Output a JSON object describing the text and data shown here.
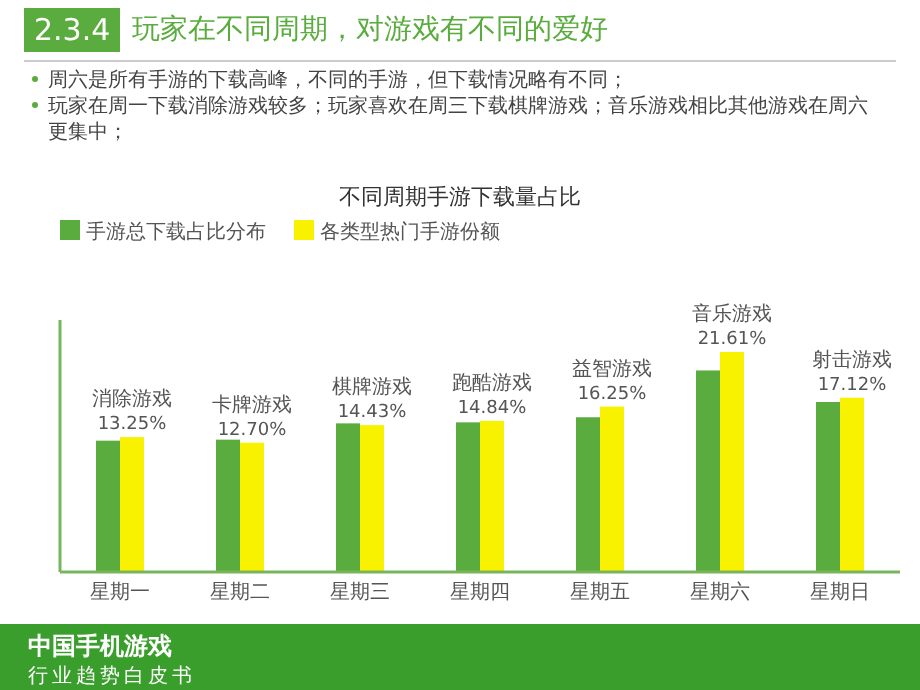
{
  "chart_data": {
    "type": "bar",
    "title": "2.3.4 玩家在不同周期，对游戏有不同的爱好",
    "subtitle": "不同周期手游下载量占比",
    "categories": [
      "星期一",
      "星期二",
      "星期三",
      "星期四",
      "星期五",
      "星期六",
      "星期日"
    ],
    "series": [
      {
        "name": "手游总下载占比分布",
        "color": "#5aac3e",
        "values": [
          12.9,
          13.0,
          14.6,
          14.7,
          15.2,
          19.8,
          16.7
        ]
      },
      {
        "name": "各类型热门手游份额",
        "color": "#f8f200",
        "values": [
          13.25,
          12.7,
          14.43,
          14.84,
          16.25,
          21.61,
          17.12
        ],
        "value_labels": [
          "13.25%",
          "12.70%",
          "14.43%",
          "14.84%",
          "16.25%",
          "21.61%",
          "17.12%"
        ]
      }
    ],
    "annotations": [
      "周六是所有手游的下载高峰，不同的手游，但下载情况略有不同；",
      "玩家在周一下载消除游戏较多；玩家喜欢在周三下载棋牌游戏；音乐游戏相比其他游戏在周六更集中；",
      {
        "text": "消除游戏",
        "x": "星期一",
        "y": 13.25
      },
      {
        "text": "卡牌游戏",
        "x": "星期二",
        "y": 12.7
      },
      {
        "text": "棋牌游戏",
        "x": "星期三",
        "y": 14.43
      },
      {
        "text": "跑酷游戏",
        "x": "星期四",
        "y": 14.84
      },
      {
        "text": "益智游戏",
        "x": "星期五",
        "y": 16.25
      },
      {
        "text": "音乐游戏",
        "x": "星期六",
        "y": 21.61
      },
      {
        "text": "射击游戏",
        "x": "星期日",
        "y": 17.12
      },
      "中国手机游戏",
      "行业趋势白皮书"
    ],
    "legend": "top left"
  }
}
